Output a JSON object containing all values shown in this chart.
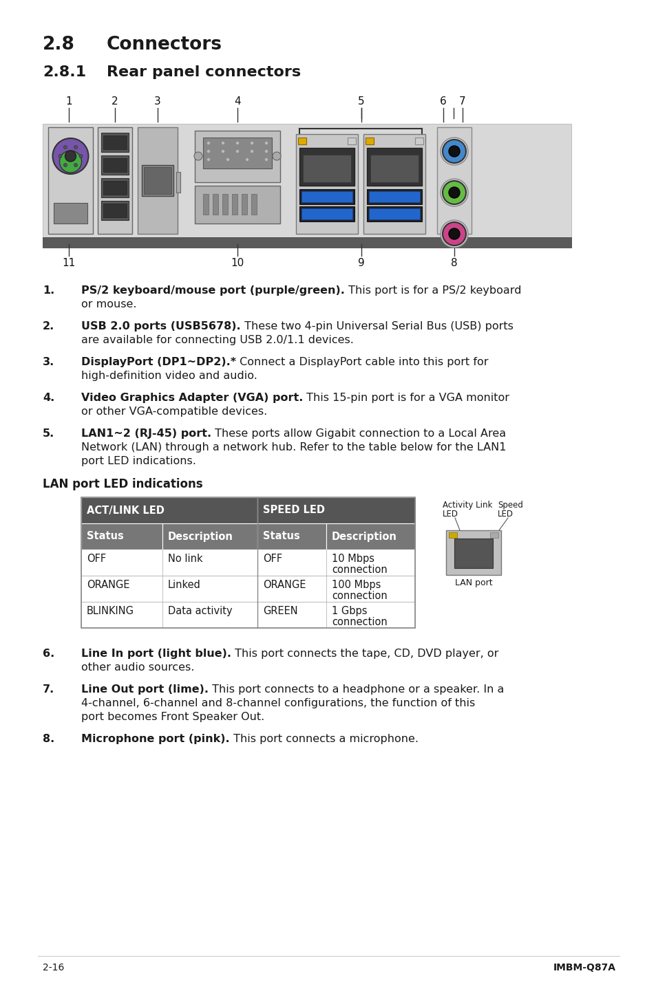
{
  "page_bg": "#ffffff",
  "section_title_color": "#1a1a1a",
  "body_text_color": "#1a1a1a",
  "title_28": "2.8",
  "title_28_text": "Connectors",
  "title_281": "2.8.1",
  "title_281_text": "Rear panel connectors",
  "items": [
    {
      "num": "1.",
      "bold": "PS/2 keyboard/mouse port (purple/green).",
      "text": " This port is for a PS/2 keyboard or mouse."
    },
    {
      "num": "2.",
      "bold": "USB 2.0 ports (USB5678).",
      "text": " These two 4-pin Universal Serial Bus (USB) ports are available for connecting USB 2.0/1.1 devices."
    },
    {
      "num": "3.",
      "bold": "DisplayPort (DP1~DP2).*",
      "text": " Connect a DisplayPort cable into this port for high-definition video and audio."
    },
    {
      "num": "4.",
      "bold": "Video Graphics Adapter (VGA) port.",
      "text": " This 15-pin port is for a VGA monitor or other VGA-compatible devices."
    },
    {
      "num": "5.",
      "bold": "LAN1~2 (RJ-45) port.",
      "text": " These ports allow Gigabit connection to a Local Area Network (LAN) through a network hub. Refer to the table below for the LAN1 port LED indications."
    },
    {
      "num": "6.",
      "bold": "Line In port (light blue).",
      "text": " This port connects the tape, CD, DVD player, or other audio sources."
    },
    {
      "num": "7.",
      "bold": "Line Out port (lime).",
      "text": " This port connects to a headphone or a speaker. In a 4-channel, 6-channel and 8-channel configurations, the function of this port becomes Front Speaker Out."
    },
    {
      "num": "8.",
      "bold": "Microphone port (pink).",
      "text": " This port connects a microphone."
    }
  ],
  "lan_section_title": "LAN port LED indications",
  "table_header_bg": "#555555",
  "table_subheader_bg": "#777777",
  "table_header_text": "#ffffff",
  "footer_left": "2-16",
  "footer_right": "IMBM-Q87A"
}
